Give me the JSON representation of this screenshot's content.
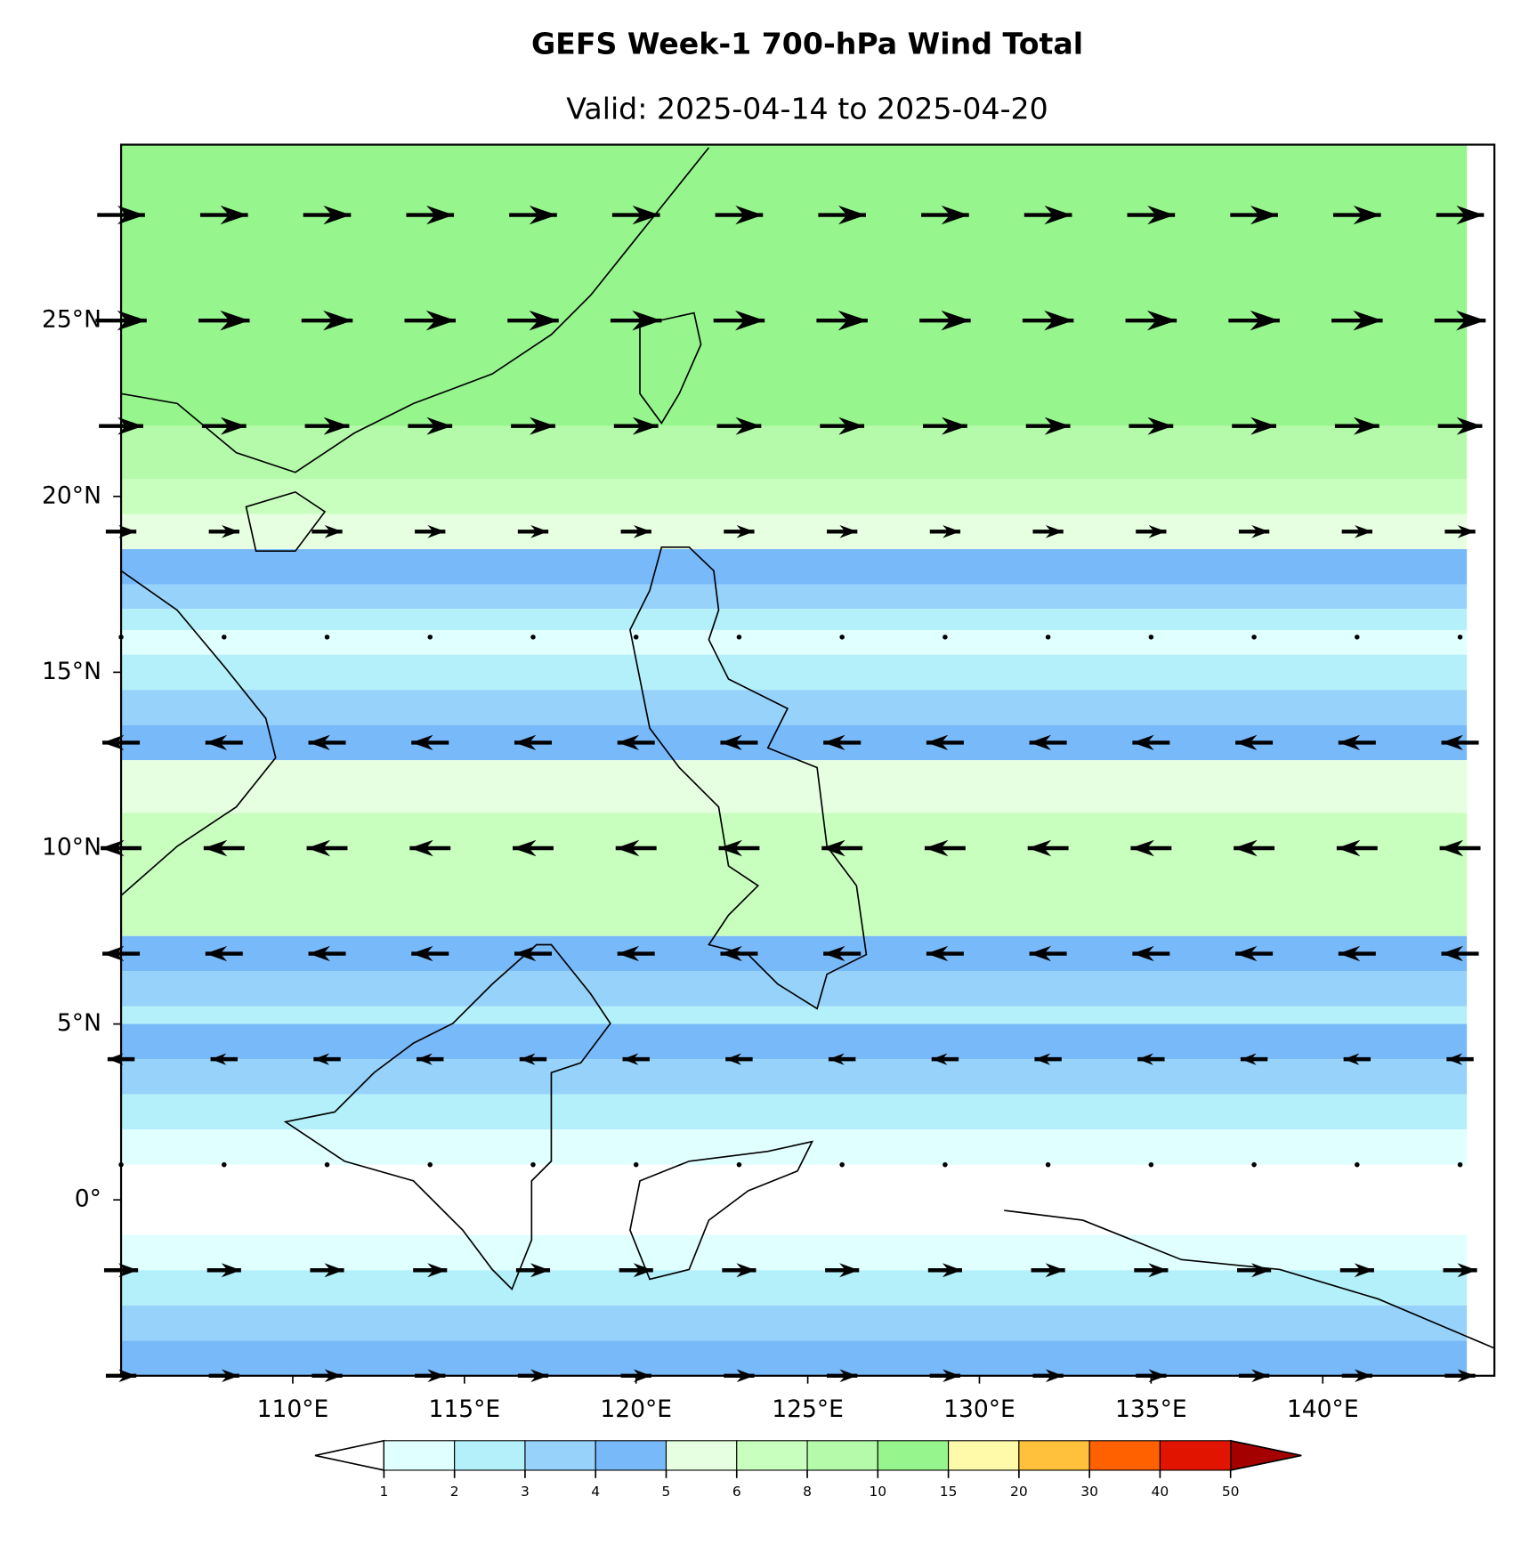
{
  "header": {
    "title": "GEFS Week-1 700-hPa Wind Total",
    "subtitle": "Valid: 2025-04-14 to 2025-04-20"
  },
  "map": {
    "lonlim": [
      105,
      145
    ],
    "latlim": [
      -5,
      30
    ],
    "lon_ticks": [
      {
        "value": 110,
        "label": "110°E"
      },
      {
        "value": 115,
        "label": "115°E"
      },
      {
        "value": 120,
        "label": "120°E"
      },
      {
        "value": 125,
        "label": "125°E"
      },
      {
        "value": 130,
        "label": "130°E"
      },
      {
        "value": 135,
        "label": "135°E"
      },
      {
        "value": 140,
        "label": "140°E"
      }
    ],
    "lat_ticks": [
      {
        "value": 0,
        "label": "0°"
      },
      {
        "value": 5,
        "label": "5°N"
      },
      {
        "value": 10,
        "label": "10°N"
      },
      {
        "value": 15,
        "label": "15°N"
      },
      {
        "value": 20,
        "label": "20°N"
      },
      {
        "value": 25,
        "label": "25°N"
      }
    ]
  },
  "colorbar": {
    "levels": [
      1,
      2,
      3,
      4,
      5,
      6,
      8,
      10,
      15,
      20,
      30,
      40,
      50
    ],
    "colors": [
      "#e0ffff",
      "#b4f0fa",
      "#96d2fa",
      "#78b9fa",
      "#e6ffe0",
      "#c8ffbe",
      "#b4faaa",
      "#96f58c",
      "#fffaaa",
      "#ffc03c",
      "#ff6000",
      "#e11400"
    ],
    "under_color": "#ffffff",
    "over_color": "#a50000"
  }
}
